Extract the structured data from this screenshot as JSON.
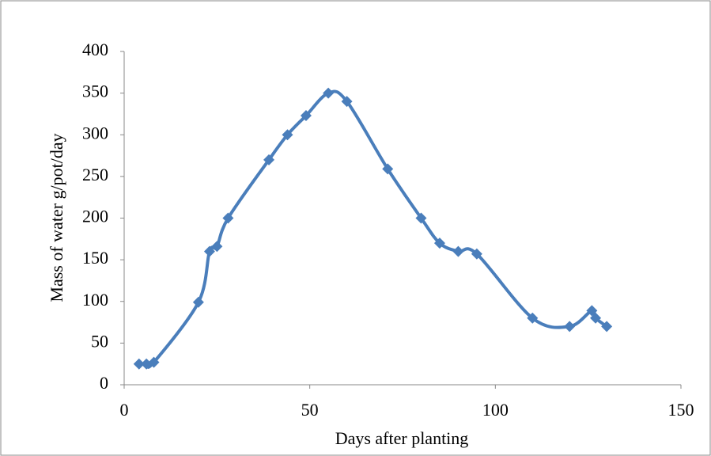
{
  "chart_data": {
    "type": "line",
    "x_label": "Days after planting",
    "y_label": "Mass of water g/pot/day",
    "x": [
      4,
      6,
      8,
      20,
      23,
      25,
      28,
      39,
      44,
      49,
      55,
      60,
      71,
      80,
      85,
      90,
      95,
      110,
      120,
      126,
      127,
      130
    ],
    "series": [
      {
        "name": "Mass of water",
        "color": "#4a7ebb",
        "values": [
          25,
          25,
          27,
          99,
          160,
          166,
          200,
          270,
          300,
          323,
          350,
          340,
          259,
          200,
          170,
          160,
          157,
          80,
          70,
          89,
          80,
          70
        ]
      }
    ],
    "xlim": [
      0,
      150
    ],
    "xticks": [
      0,
      50,
      100,
      150
    ],
    "ylim": [
      0,
      400
    ],
    "yticks": [
      0,
      50,
      100,
      150,
      200,
      250,
      300,
      350,
      400
    ],
    "smooth": true,
    "marker": "diamond",
    "grid": false
  }
}
